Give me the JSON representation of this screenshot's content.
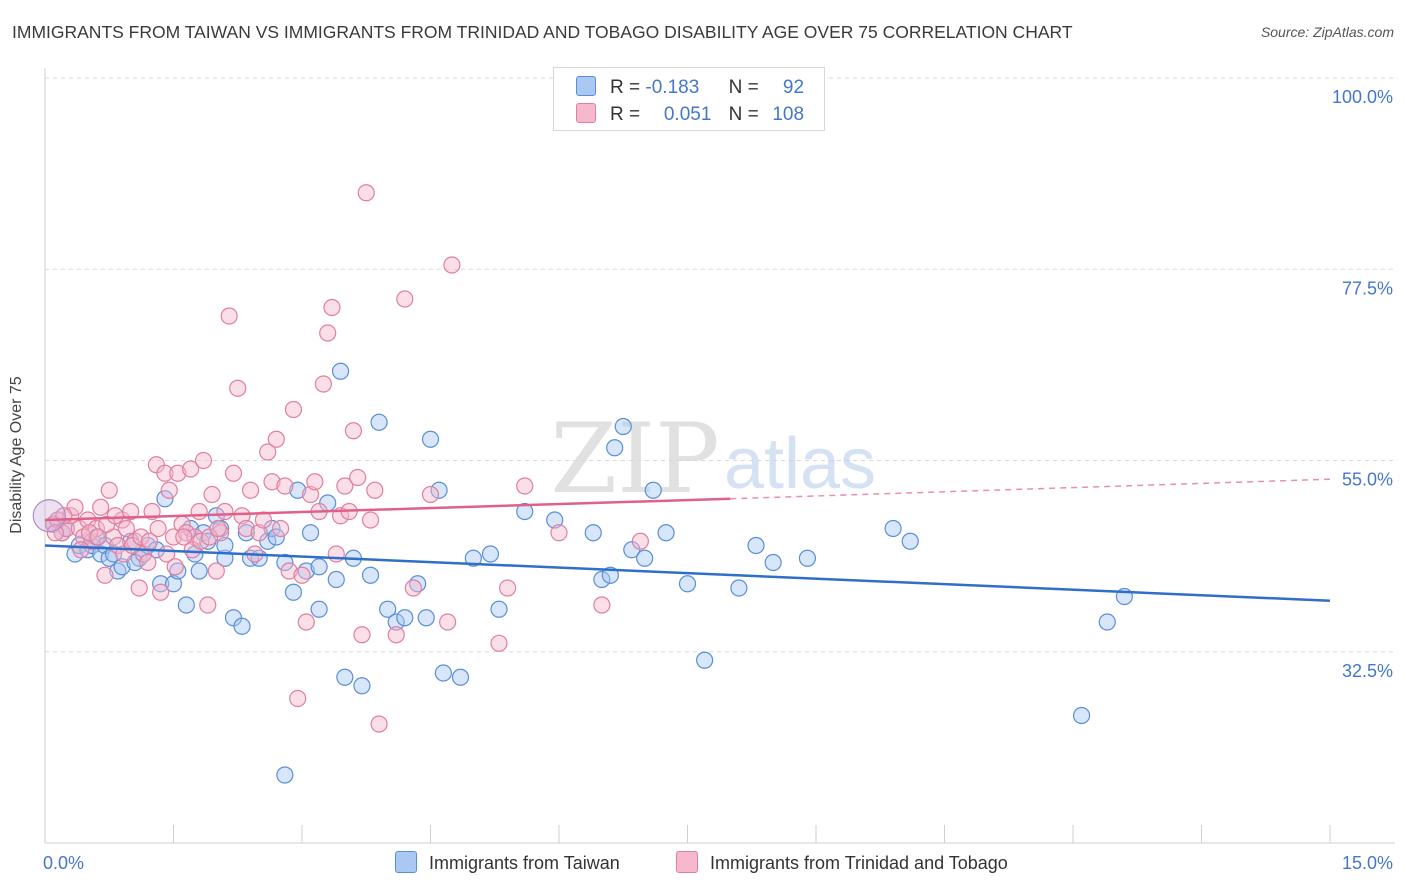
{
  "title": "IMMIGRANTS FROM TAIWAN VS IMMIGRANTS FROM TRINIDAD AND TOBAGO DISABILITY AGE OVER 75 CORRELATION CHART",
  "source": "Source: ZipAtlas.com",
  "legend": {
    "r_label": "R =",
    "n_label": "N =",
    "taiwan": {
      "r": "-0.183",
      "n": "92"
    },
    "trinidad": {
      "r": "0.051",
      "n": "108"
    }
  },
  "watermark": {
    "zip": "ZIP",
    "atlas": "atlas"
  },
  "colors": {
    "taiwan_fill": "#a9c8f2",
    "taiwan_stroke": "#5b8ed8",
    "taiwan_line": "#2f6fc9",
    "trinidad_fill": "#f5b8cc",
    "trinidad_stroke": "#e07fa0",
    "trinidad_line": "#e0608a",
    "axis_text": "#4477cc",
    "grid": "#d9d9d9"
  },
  "chart_data": {
    "type": "scatter",
    "title": "IMMIGRANTS FROM TAIWAN VS IMMIGRANTS FROM TRINIDAD AND TOBAGO DISABILITY AGE OVER 75 CORRELATION CHART",
    "xlabel": "",
    "ylabel": "Disability Age Over 75",
    "xlim": [
      0,
      15
    ],
    "ylim": [
      10,
      100
    ],
    "x_tick_labels": [
      "0.0%",
      "15.0%"
    ],
    "y_ticks": [
      {
        "value": 32.5,
        "label": "32.5%"
      },
      {
        "value": 55.0,
        "label": "55.0%"
      },
      {
        "value": 77.5,
        "label": "77.5%"
      },
      {
        "value": 100.0,
        "label": "100.0%"
      }
    ],
    "series": [
      {
        "name": "Immigrants from Taiwan",
        "trend": {
          "x0": 0.0,
          "y0": 45.0,
          "x1": 15.0,
          "y1": 38.5
        },
        "points": [
          [
            0.1,
            47.5
          ],
          [
            0.2,
            46.5
          ],
          [
            0.25,
            47.0
          ],
          [
            0.35,
            44.0
          ],
          [
            0.4,
            45.0
          ],
          [
            0.5,
            44.5
          ],
          [
            0.55,
            45.0
          ],
          [
            0.6,
            46.0
          ],
          [
            0.65,
            44.0
          ],
          [
            0.7,
            45.0
          ],
          [
            0.75,
            43.5
          ],
          [
            0.8,
            44.0
          ],
          [
            0.85,
            42.0
          ],
          [
            0.9,
            42.5
          ],
          [
            1.0,
            45.5
          ],
          [
            1.1,
            43.5
          ],
          [
            1.15,
            44.0
          ],
          [
            1.2,
            45.0
          ],
          [
            1.3,
            44.5
          ],
          [
            1.35,
            40.5
          ],
          [
            1.4,
            50.5
          ],
          [
            1.5,
            40.5
          ],
          [
            1.55,
            42.0
          ],
          [
            1.65,
            38.0
          ],
          [
            1.7,
            47.0
          ],
          [
            1.75,
            44.0
          ],
          [
            1.8,
            42.0
          ],
          [
            1.85,
            46.5
          ],
          [
            1.9,
            45.5
          ],
          [
            2.0,
            48.5
          ],
          [
            2.05,
            47.0
          ],
          [
            2.1,
            43.5
          ],
          [
            2.2,
            36.5
          ],
          [
            2.3,
            35.5
          ],
          [
            2.35,
            46.5
          ],
          [
            2.4,
            43.5
          ],
          [
            2.5,
            43.5
          ],
          [
            2.6,
            45.5
          ],
          [
            2.65,
            47.0
          ],
          [
            2.7,
            46.0
          ],
          [
            2.8,
            43.0
          ],
          [
            2.9,
            39.5
          ],
          [
            2.95,
            51.5
          ],
          [
            3.05,
            42.0
          ],
          [
            3.1,
            46.5
          ],
          [
            3.2,
            37.5
          ],
          [
            3.3,
            50.0
          ],
          [
            3.4,
            41.0
          ],
          [
            3.5,
            29.5
          ],
          [
            3.6,
            43.5
          ],
          [
            3.7,
            28.5
          ],
          [
            3.8,
            41.5
          ],
          [
            3.9,
            59.5
          ],
          [
            4.0,
            37.5
          ],
          [
            4.1,
            36.0
          ],
          [
            4.2,
            36.5
          ],
          [
            4.35,
            40.5
          ],
          [
            4.45,
            36.5
          ],
          [
            4.5,
            57.5
          ],
          [
            4.6,
            51.5
          ],
          [
            4.65,
            30.0
          ],
          [
            4.85,
            29.5
          ],
          [
            5.0,
            43.5
          ],
          [
            5.3,
            37.5
          ],
          [
            5.6,
            49.0
          ],
          [
            5.95,
            48.0
          ],
          [
            6.4,
            46.5
          ],
          [
            6.5,
            41.0
          ],
          [
            6.6,
            41.5
          ],
          [
            6.65,
            56.5
          ],
          [
            6.75,
            59.0
          ],
          [
            6.85,
            44.5
          ],
          [
            7.0,
            43.5
          ],
          [
            7.1,
            51.5
          ],
          [
            7.25,
            46.5
          ],
          [
            7.5,
            40.5
          ],
          [
            7.7,
            31.5
          ],
          [
            8.1,
            40.0
          ],
          [
            8.3,
            45.0
          ],
          [
            8.5,
            43.0
          ],
          [
            8.9,
            43.5
          ],
          [
            9.9,
            47.0
          ],
          [
            10.1,
            45.5
          ],
          [
            12.1,
            25.0
          ],
          [
            12.4,
            36.0
          ],
          [
            12.6,
            39.0
          ],
          [
            3.45,
            65.5
          ],
          [
            3.2,
            42.5
          ],
          [
            2.1,
            45.0
          ],
          [
            1.05,
            43.0
          ],
          [
            2.8,
            18.0
          ],
          [
            5.2,
            44.0
          ]
        ]
      },
      {
        "name": "Immigrants from Trinidad and Tobago",
        "trend": {
          "x0": 0.0,
          "y0": 48.0,
          "x1": 8.0,
          "y1": 50.5,
          "dashed_to": {
            "x": 15.0,
            "y": 52.8
          }
        },
        "points": [
          [
            0.1,
            47.5
          ],
          [
            0.15,
            48.0
          ],
          [
            0.2,
            46.5
          ],
          [
            0.25,
            47.0
          ],
          [
            0.3,
            48.5
          ],
          [
            0.35,
            49.5
          ],
          [
            0.4,
            47.0
          ],
          [
            0.45,
            46.0
          ],
          [
            0.5,
            48.0
          ],
          [
            0.55,
            45.5
          ],
          [
            0.6,
            47.0
          ],
          [
            0.65,
            49.5
          ],
          [
            0.7,
            41.5
          ],
          [
            0.75,
            51.5
          ],
          [
            0.8,
            46.0
          ],
          [
            0.85,
            45.0
          ],
          [
            0.9,
            48.0
          ],
          [
            0.95,
            47.0
          ],
          [
            1.0,
            49.0
          ],
          [
            1.05,
            45.5
          ],
          [
            1.1,
            40.0
          ],
          [
            1.15,
            44.0
          ],
          [
            1.2,
            43.0
          ],
          [
            1.25,
            49.0
          ],
          [
            1.3,
            54.5
          ],
          [
            1.35,
            39.5
          ],
          [
            1.4,
            53.5
          ],
          [
            1.45,
            51.5
          ],
          [
            1.5,
            46.0
          ],
          [
            1.55,
            53.5
          ],
          [
            1.6,
            47.5
          ],
          [
            1.65,
            46.5
          ],
          [
            1.7,
            54.0
          ],
          [
            1.75,
            46.0
          ],
          [
            1.8,
            49.0
          ],
          [
            1.85,
            55.0
          ],
          [
            1.9,
            38.0
          ],
          [
            1.95,
            51.0
          ],
          [
            2.0,
            42.0
          ],
          [
            2.05,
            46.5
          ],
          [
            2.1,
            49.0
          ],
          [
            2.15,
            72.0
          ],
          [
            2.2,
            53.5
          ],
          [
            2.25,
            63.5
          ],
          [
            2.3,
            48.5
          ],
          [
            2.35,
            47.0
          ],
          [
            2.4,
            51.5
          ],
          [
            2.45,
            44.0
          ],
          [
            2.5,
            46.5
          ],
          [
            2.55,
            48.0
          ],
          [
            2.6,
            56.0
          ],
          [
            2.65,
            52.5
          ],
          [
            2.7,
            57.5
          ],
          [
            2.75,
            47.0
          ],
          [
            2.8,
            52.0
          ],
          [
            2.85,
            42.0
          ],
          [
            2.9,
            61.0
          ],
          [
            2.95,
            27.0
          ],
          [
            3.0,
            41.5
          ],
          [
            3.05,
            36.0
          ],
          [
            3.1,
            51.0
          ],
          [
            3.15,
            52.5
          ],
          [
            3.2,
            49.0
          ],
          [
            3.25,
            64.0
          ],
          [
            3.3,
            70.0
          ],
          [
            3.35,
            73.0
          ],
          [
            3.4,
            44.0
          ],
          [
            3.45,
            48.5
          ],
          [
            3.5,
            52.0
          ],
          [
            3.55,
            49.0
          ],
          [
            3.6,
            58.5
          ],
          [
            3.65,
            53.0
          ],
          [
            3.7,
            34.5
          ],
          [
            3.75,
            86.5
          ],
          [
            3.8,
            48.0
          ],
          [
            3.85,
            51.5
          ],
          [
            3.9,
            24.0
          ],
          [
            4.1,
            34.5
          ],
          [
            4.2,
            74.0
          ],
          [
            4.3,
            40.0
          ],
          [
            4.5,
            51.0
          ],
          [
            4.7,
            36.0
          ],
          [
            4.75,
            78.0
          ],
          [
            5.3,
            33.5
          ],
          [
            5.4,
            40.0
          ],
          [
            5.6,
            52.0
          ],
          [
            6.0,
            46.5
          ],
          [
            6.5,
            38.0
          ],
          [
            6.95,
            45.5
          ],
          [
            0.12,
            46.5
          ],
          [
            0.22,
            48.5
          ],
          [
            0.42,
            44.5
          ],
          [
            0.52,
            46.5
          ],
          [
            0.62,
            46.0
          ],
          [
            0.72,
            47.5
          ],
          [
            0.82,
            48.5
          ],
          [
            0.92,
            44.0
          ],
          [
            1.02,
            45.0
          ],
          [
            1.12,
            46.0
          ],
          [
            1.22,
            45.5
          ],
          [
            1.32,
            47.0
          ],
          [
            1.42,
            44.0
          ],
          [
            1.52,
            42.5
          ],
          [
            1.62,
            46.0
          ],
          [
            1.72,
            44.5
          ],
          [
            1.82,
            45.5
          ],
          [
            1.92,
            46.0
          ],
          [
            2.02,
            47.0
          ]
        ]
      }
    ]
  }
}
